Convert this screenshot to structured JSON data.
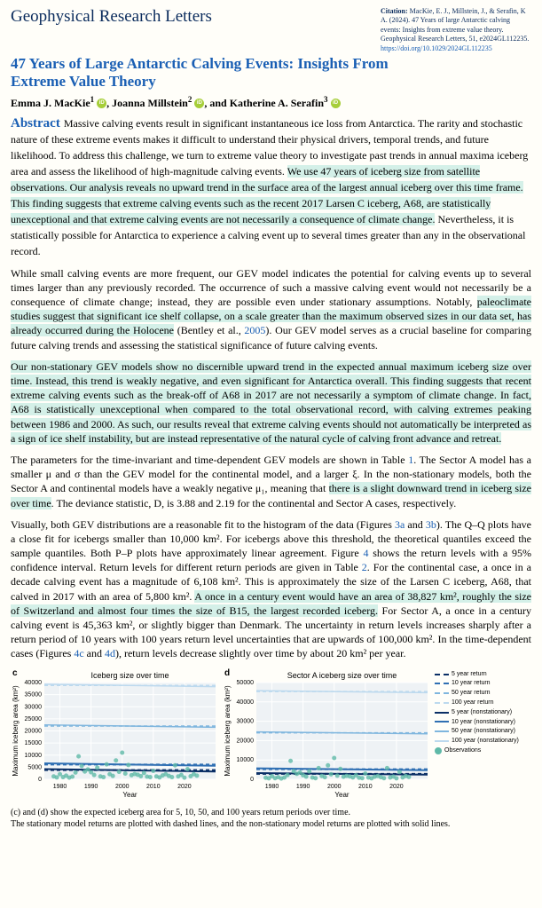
{
  "journal": "Geophysical Research Letters",
  "citation": {
    "label": "Citation:",
    "text": "MacKie, E. J., Millstein, J., & Serafin, K A. (2024). 47 Years of large Antarctic calving events: Insights from extreme value theory. Geophysical Research Letters, 51, e2024GL112235.",
    "doi": "https://doi.org/10.1029/2024GL112235"
  },
  "title": "47 Years of Large Antarctic Calving Events: Insights From Extreme Value Theory",
  "authors": {
    "a1": "Emma J. MacKie",
    "s1": "1",
    "a2": "Joanna Millstein",
    "s2": "2",
    "a3": "Katherine A. Serafin",
    "s3": "3",
    "sep": ", ",
    "and": ", and "
  },
  "abstract_label": "Abstract",
  "abstract": {
    "p1a": "Massive calving events result in significant instantaneous ice loss from Antarctica. The rarity and stochastic nature of these extreme events makes it difficult to understand their physical drivers, temporal trends, and future likelihood. To address this challenge, we turn to extreme value theory to investigate past trends in annual maxima iceberg area and assess the likelihood of high-magnitude calving events. ",
    "p1h": "We use 47 years of iceberg size from satellite observations. Our analysis reveals no upward trend in the surface area of the largest annual iceberg over this time frame. This finding suggests that extreme calving events such as the recent 2017 Larsen C iceberg, A68, are statistically unexceptional and that extreme calving events are not necessarily a consequence of climate change.",
    "p1b": " Nevertheless, it is statistically possible for Antarctica to experience a calving event up to several times greater than any in the observational record."
  },
  "paragraphs": {
    "p2a": "While small calving events are more frequent, our GEV model indicates the potential for calving events up to several times larger than any previously recorded. The occurrence of such a massive calving event would not necessarily be a consequence of climate change; instead, they are possible even under stationary assumptions. Notably, ",
    "p2h": "paleoclimate studies suggest that significant ice shelf collapse, on a scale greater than the maximum observed sizes in our data set, has already occurred during the Holocene",
    "p2b": " (Bentley et al., ",
    "p2ref": "2005",
    "p2c": "). Our GEV model serves as a crucial baseline for comparing future calving trends and assessing the statistical significance of future calving events.",
    "p3h": "Our non-stationary GEV models show no discernible upward trend in the expected annual maximum iceberg size over time. Instead, this trend is weakly negative, and even significant for Antarctica overall. This finding suggests that recent extreme calving events such as the break-off of A68 in 2017 are not necessarily a symptom of climate change. In fact, A68 is statistically unexceptional when compared to the total observational record, with calving extremes peaking between 1986 and 2000. As such, our results reveal that extreme calving events should not automatically be interpreted as a sign of ice shelf instability, but are instead representative of the natural cycle of calving front advance and retreat.",
    "p4a": "The parameters for the time-invariant and time-dependent GEV models are shown in Table ",
    "p4ref1": "1",
    "p4b": ". The Sector A model has a smaller μ and σ than the GEV model for the continental model, and a larger ξ. In the non-stationary models, both the Sector A and continental models have a weakly negative μ₁, meaning that ",
    "p4h": "there is a slight downward trend in iceberg size over time",
    "p4c": ". The deviance statistic, D, is 3.88 and 2.19 for the continental and Sector A cases, respectively.",
    "p5a": "Visually, both GEV distributions are a reasonable fit to the histogram of the data (Figures ",
    "p5r1": "3a",
    "p5b": " and ",
    "p5r2": "3b",
    "p5c": "). The Q–Q plots have a close fit for icebergs smaller than 10,000 km². For icebergs above this threshold, the theoretical quantiles exceed the sample quantiles. Both P–P plots have approximately linear agreement. Figure ",
    "p5r3": "4",
    "p5d": " shows the return levels with a 95% confidence interval. Return levels for different return periods are given in Table ",
    "p5r4": "2",
    "p5e": ". For the continental case, a once in a decade calving event has a magnitude of 6,108 km². This is approximately the size of the Larsen C iceberg, A68, that calved in 2017 with an area of 5,800 km². ",
    "p5h": "A once in a century event would have an area of 38,827 km², roughly the size of Switzerland and almost four times the size of B15, the largest recorded iceberg.",
    "p5f": " For Sector A, a once in a century calving event is 45,363 km², or slightly bigger than Denmark. The uncertainty in return levels increases sharply after a return period of 10 years with 100 years return level uncertainties that are upwards of 100,000 km². In the time-dependent cases (Figures ",
    "p5r5": "4c",
    "p5g": " and ",
    "p5r6": "4d",
    "p5i": "), return levels decrease slightly over time by about 20 km² per year."
  },
  "charts": {
    "c": {
      "panel_label": "c",
      "title": "Iceberg size over time",
      "xlabel": "Year",
      "ylabel": "Maximum iceberg area (km²)",
      "xlim": [
        1975,
        2030
      ],
      "ylim": [
        0,
        40000
      ],
      "yticks": [
        0,
        5000,
        10000,
        15000,
        20000,
        25000,
        30000,
        35000,
        40000
      ],
      "xticks": [
        1980,
        1990,
        2000,
        2010,
        2020
      ],
      "background": "#eef2f5",
      "grid_color": "#ffffff",
      "lines": {
        "r5_dash": {
          "y": 3800,
          "color": "#0b2f66",
          "dash": true,
          "width": 2
        },
        "r10_dash": {
          "y": 6108,
          "color": "#2f6fb3",
          "dash": true,
          "width": 2
        },
        "r50_dash": {
          "y": 22000,
          "color": "#7fb6de",
          "dash": true,
          "width": 1.5
        },
        "r100_dash": {
          "y": 38827,
          "color": "#bcd9ee",
          "dash": true,
          "width": 1.5
        },
        "r5_solid": {
          "y0": 4200,
          "y1": 3200,
          "color": "#0b2f66",
          "dash": false,
          "width": 2
        },
        "r10_solid": {
          "y0": 6600,
          "y1": 5600,
          "color": "#2f6fb3",
          "dash": false,
          "width": 2
        },
        "r50_solid": {
          "y0": 22500,
          "y1": 21500,
          "color": "#7fb6de",
          "dash": false,
          "width": 1.5
        },
        "r100_solid": {
          "y0": 39300,
          "y1": 38300,
          "color": "#bcd9ee",
          "dash": false,
          "width": 1.5
        }
      },
      "obs_color": "#5fb9a8",
      "observations": [
        [
          1978,
          1200
        ],
        [
          1979,
          800
        ],
        [
          1980,
          2100
        ],
        [
          1981,
          900
        ],
        [
          1982,
          1500
        ],
        [
          1983,
          700
        ],
        [
          1984,
          1100
        ],
        [
          1985,
          2800
        ],
        [
          1986,
          9500
        ],
        [
          1987,
          5500
        ],
        [
          1988,
          3200
        ],
        [
          1989,
          4100
        ],
        [
          1990,
          2900
        ],
        [
          1991,
          1800
        ],
        [
          1992,
          4800
        ],
        [
          1993,
          1200
        ],
        [
          1994,
          900
        ],
        [
          1995,
          6200
        ],
        [
          1996,
          2100
        ],
        [
          1997,
          1400
        ],
        [
          1998,
          7800
        ],
        [
          1999,
          3100
        ],
        [
          2000,
          11000
        ],
        [
          2001,
          2400
        ],
        [
          2002,
          5900
        ],
        [
          2003,
          1700
        ],
        [
          2004,
          2200
        ],
        [
          2005,
          1900
        ],
        [
          2006,
          1300
        ],
        [
          2007,
          2600
        ],
        [
          2008,
          1100
        ],
        [
          2009,
          900
        ],
        [
          2010,
          3500
        ],
        [
          2011,
          1200
        ],
        [
          2012,
          800
        ],
        [
          2013,
          1600
        ],
        [
          2014,
          2100
        ],
        [
          2015,
          1400
        ],
        [
          2016,
          900
        ],
        [
          2017,
          5800
        ],
        [
          2018,
          1200
        ],
        [
          2019,
          1800
        ],
        [
          2020,
          700
        ],
        [
          2021,
          4200
        ],
        [
          2022,
          1300
        ],
        [
          2023,
          2100
        ],
        [
          2024,
          1500
        ]
      ]
    },
    "d": {
      "panel_label": "d",
      "title": "Sector A iceberg size over time",
      "xlabel": "Year",
      "ylabel": "Maximum iceberg area (km²)",
      "xlim": [
        1975,
        2030
      ],
      "ylim": [
        0,
        50000
      ],
      "yticks": [
        0,
        10000,
        20000,
        30000,
        40000,
        50000
      ],
      "xticks": [
        1980,
        1990,
        2000,
        2010,
        2020
      ],
      "background": "#eef2f5",
      "grid_color": "#ffffff",
      "lines": {
        "r5_dash": {
          "y": 2800,
          "color": "#0b2f66",
          "dash": true,
          "width": 2
        },
        "r10_dash": {
          "y": 5200,
          "color": "#2f6fb3",
          "dash": true,
          "width": 2
        },
        "r50_dash": {
          "y": 24000,
          "color": "#7fb6de",
          "dash": true,
          "width": 1.5
        },
        "r100_dash": {
          "y": 45363,
          "color": "#bcd9ee",
          "dash": true,
          "width": 1.5
        },
        "r5_solid": {
          "y0": 3200,
          "y1": 2400,
          "color": "#0b2f66",
          "dash": false,
          "width": 2
        },
        "r10_solid": {
          "y0": 5700,
          "y1": 4700,
          "color": "#2f6fb3",
          "dash": false,
          "width": 2
        },
        "r50_solid": {
          "y0": 24500,
          "y1": 23500,
          "color": "#7fb6de",
          "dash": false,
          "width": 1.5
        },
        "r100_solid": {
          "y0": 45800,
          "y1": 44800,
          "color": "#bcd9ee",
          "dash": false,
          "width": 1.5
        }
      },
      "obs_color": "#5fb9a8",
      "observations": [
        [
          1978,
          800
        ],
        [
          1979,
          500
        ],
        [
          1980,
          1600
        ],
        [
          1981,
          600
        ],
        [
          1982,
          1100
        ],
        [
          1983,
          400
        ],
        [
          1984,
          900
        ],
        [
          1985,
          2200
        ],
        [
          1986,
          9500
        ],
        [
          1987,
          4200
        ],
        [
          1988,
          2800
        ],
        [
          1989,
          3500
        ],
        [
          1990,
          2100
        ],
        [
          1991,
          1400
        ],
        [
          1992,
          4100
        ],
        [
          1993,
          900
        ],
        [
          1994,
          600
        ],
        [
          1995,
          5800
        ],
        [
          1996,
          1700
        ],
        [
          1997,
          1100
        ],
        [
          1998,
          7200
        ],
        [
          1999,
          2600
        ],
        [
          2000,
          11000
        ],
        [
          2001,
          1900
        ],
        [
          2002,
          5400
        ],
        [
          2003,
          1300
        ],
        [
          2004,
          1800
        ],
        [
          2005,
          1500
        ],
        [
          2006,
          1000
        ],
        [
          2007,
          2100
        ],
        [
          2008,
          800
        ],
        [
          2009,
          600
        ],
        [
          2010,
          3000
        ],
        [
          2011,
          900
        ],
        [
          2012,
          500
        ],
        [
          2013,
          1300
        ],
        [
          2014,
          1700
        ],
        [
          2015,
          1100
        ],
        [
          2016,
          600
        ],
        [
          2017,
          5800
        ],
        [
          2018,
          900
        ],
        [
          2019,
          1400
        ],
        [
          2020,
          500
        ],
        [
          2021,
          3800
        ],
        [
          2022,
          1000
        ],
        [
          2023,
          1700
        ],
        [
          2024,
          1200
        ]
      ]
    },
    "legend": [
      {
        "label": "5 year return",
        "color": "#0b2f66",
        "style": "dashed"
      },
      {
        "label": "10 year return",
        "color": "#2f6fb3",
        "style": "dashed"
      },
      {
        "label": "50 year return",
        "color": "#7fb6de",
        "style": "dashed"
      },
      {
        "label": "100 year return",
        "color": "#bcd9ee",
        "style": "dashed"
      },
      {
        "label": "5 year (nonstationary)",
        "color": "#0b2f66",
        "style": "solid"
      },
      {
        "label": "10 year (nonstationary)",
        "color": "#2f6fb3",
        "style": "solid"
      },
      {
        "label": "50 year (nonstationary)",
        "color": "#7fb6de",
        "style": "solid"
      },
      {
        "label": "100 year (nonstationary)",
        "color": "#bcd9ee",
        "style": "solid"
      },
      {
        "label": "Observations",
        "color": "#5fb9a8",
        "style": "dot"
      }
    ]
  },
  "caption": {
    "l1": "(c) and (d) show the expected iceberg area for 5, 10, 50, and 100 years return periods over time.",
    "l2": "The stationary model returns are plotted with dashed lines, and the non-stationary model returns are plotted with solid lines."
  }
}
